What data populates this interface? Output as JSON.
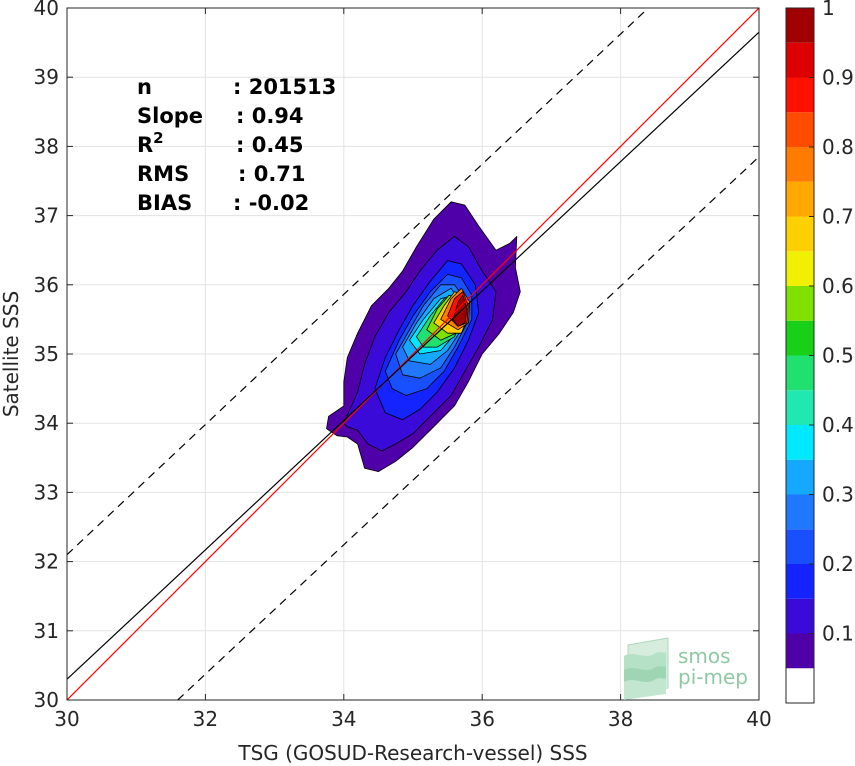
{
  "chart_data": {
    "type": "contour-density-scatter",
    "xlabel": "TSG (GOSUD-Research-vessel) SSS",
    "ylabel": "Satellite SSS",
    "xlim": [
      30,
      40
    ],
    "ylim": [
      30,
      40
    ],
    "xticks": [
      "30",
      "32",
      "34",
      "36",
      "38",
      "40"
    ],
    "yticks": [
      "30",
      "31",
      "32",
      "33",
      "34",
      "35",
      "36",
      "37",
      "38",
      "39",
      "40"
    ],
    "grid": true,
    "stats": [
      {
        "key": "n",
        "value": ": 201513"
      },
      {
        "key": "Slope",
        "value": ": 0.94"
      },
      {
        "key": "R",
        "sup": "2",
        "value": ": 0.45"
      },
      {
        "key": "RMS",
        "value": ": 0.71"
      },
      {
        "key": "BIAS",
        "value": ": -0.02"
      }
    ],
    "lines": [
      {
        "kind": "identity",
        "color": "#ff0000",
        "style": "solid",
        "x": [
          30,
          40
        ],
        "y": [
          30,
          40
        ]
      },
      {
        "kind": "regression",
        "color": "#000000",
        "style": "solid",
        "x": [
          30,
          40
        ],
        "y": [
          30.3,
          39.65
        ]
      },
      {
        "kind": "upper-bound",
        "color": "#000000",
        "style": "dashed",
        "x": [
          30,
          38.4
        ],
        "y": [
          32.1,
          40
        ]
      },
      {
        "kind": "lower-bound",
        "color": "#000000",
        "style": "dashed",
        "x": [
          31.6,
          40
        ],
        "y": [
          30,
          37.85
        ]
      }
    ],
    "colorbar": {
      "ticks": [
        "0.1",
        "0.2",
        "0.3",
        "0.4",
        "0.5",
        "0.6",
        "0.7",
        "0.8",
        "0.9",
        "1"
      ],
      "range": [
        0,
        1
      ],
      "levels": [
        0.05,
        0.1,
        0.15,
        0.2,
        0.25,
        0.3,
        0.35,
        0.4,
        0.45,
        0.5,
        0.55,
        0.6,
        0.65,
        0.7,
        0.75,
        0.8,
        0.85,
        0.9,
        0.95
      ],
      "colors": [
        "#ffffff",
        "#5000a8",
        "#3a0ad8",
        "#1424ff",
        "#1850ff",
        "#1f78ff",
        "#15a8ff",
        "#00e8ff",
        "#20e8b0",
        "#20e070",
        "#18d018",
        "#80e000",
        "#f0f000",
        "#ffd000",
        "#ffa800",
        "#ff7c00",
        "#ff4c00",
        "#ff1000",
        "#dc0000",
        "#a00000"
      ]
    },
    "contours": [
      {
        "level": 0.05,
        "points": [
          [
            33.75,
            33.92
          ],
          [
            33.78,
            34.1
          ],
          [
            34.0,
            34.25
          ],
          [
            34.0,
            34.6
          ],
          [
            34.05,
            34.95
          ],
          [
            34.2,
            35.3
          ],
          [
            34.4,
            35.7
          ],
          [
            34.65,
            35.95
          ],
          [
            34.85,
            36.2
          ],
          [
            35.05,
            36.55
          ],
          [
            35.3,
            36.95
          ],
          [
            35.55,
            37.2
          ],
          [
            35.75,
            37.15
          ],
          [
            35.95,
            36.85
          ],
          [
            36.2,
            36.5
          ],
          [
            36.4,
            36.6
          ],
          [
            36.5,
            36.7
          ],
          [
            36.48,
            36.25
          ],
          [
            36.55,
            35.9
          ],
          [
            36.45,
            35.6
          ],
          [
            36.25,
            35.3
          ],
          [
            36.0,
            35.0
          ],
          [
            35.8,
            34.6
          ],
          [
            35.6,
            34.25
          ],
          [
            35.3,
            33.95
          ],
          [
            35.0,
            33.65
          ],
          [
            34.75,
            33.45
          ],
          [
            34.5,
            33.3
          ],
          [
            34.3,
            33.35
          ],
          [
            34.2,
            33.7
          ],
          [
            34.05,
            33.8
          ],
          [
            33.9,
            33.82
          ]
        ]
      },
      {
        "level": 0.1,
        "points": [
          [
            34.0,
            34.0
          ],
          [
            34.2,
            34.45
          ],
          [
            34.3,
            34.85
          ],
          [
            34.45,
            35.25
          ],
          [
            34.65,
            35.6
          ],
          [
            34.9,
            35.9
          ],
          [
            35.1,
            36.2
          ],
          [
            35.35,
            36.5
          ],
          [
            35.6,
            36.7
          ],
          [
            35.8,
            36.55
          ],
          [
            36.0,
            36.2
          ],
          [
            36.2,
            35.9
          ],
          [
            36.15,
            35.5
          ],
          [
            35.95,
            35.1
          ],
          [
            35.75,
            34.75
          ],
          [
            35.55,
            34.4
          ],
          [
            35.25,
            34.1
          ],
          [
            35.0,
            33.85
          ],
          [
            34.75,
            33.7
          ],
          [
            34.55,
            33.6
          ],
          [
            34.35,
            33.7
          ],
          [
            34.2,
            33.9
          ],
          [
            34.05,
            33.95
          ]
        ]
      },
      {
        "level": 0.15,
        "points": [
          [
            34.45,
            34.5
          ],
          [
            34.6,
            34.95
          ],
          [
            34.8,
            35.35
          ],
          [
            35.0,
            35.7
          ],
          [
            35.25,
            36.05
          ],
          [
            35.5,
            36.35
          ],
          [
            35.7,
            36.3
          ],
          [
            35.9,
            36.0
          ],
          [
            35.95,
            35.6
          ],
          [
            35.8,
            35.2
          ],
          [
            35.6,
            34.8
          ],
          [
            35.35,
            34.45
          ],
          [
            35.1,
            34.2
          ],
          [
            34.85,
            34.05
          ],
          [
            34.6,
            34.15
          ]
        ]
      },
      {
        "level": 0.2,
        "points": [
          [
            34.6,
            34.75
          ],
          [
            34.8,
            35.2
          ],
          [
            35.0,
            35.55
          ],
          [
            35.25,
            35.9
          ],
          [
            35.5,
            36.15
          ],
          [
            35.7,
            36.1
          ],
          [
            35.85,
            35.85
          ],
          [
            35.85,
            35.5
          ],
          [
            35.65,
            35.1
          ],
          [
            35.45,
            34.75
          ],
          [
            35.2,
            34.5
          ],
          [
            34.9,
            34.4
          ],
          [
            34.7,
            34.5
          ]
        ]
      },
      {
        "level": 0.25,
        "points": [
          [
            34.75,
            35.0
          ],
          [
            34.95,
            35.35
          ],
          [
            35.15,
            35.7
          ],
          [
            35.4,
            36.0
          ],
          [
            35.6,
            36.0
          ],
          [
            35.75,
            35.8
          ],
          [
            35.78,
            35.45
          ],
          [
            35.6,
            35.1
          ],
          [
            35.4,
            34.8
          ],
          [
            35.1,
            34.65
          ],
          [
            34.85,
            34.7
          ]
        ]
      },
      {
        "level": 0.3,
        "points": [
          [
            34.85,
            35.1
          ],
          [
            35.05,
            35.45
          ],
          [
            35.3,
            35.8
          ],
          [
            35.55,
            35.95
          ],
          [
            35.72,
            35.7
          ],
          [
            35.7,
            35.35
          ],
          [
            35.5,
            35.05
          ],
          [
            35.25,
            34.85
          ],
          [
            34.95,
            34.9
          ]
        ]
      },
      {
        "level": 0.35,
        "points": [
          [
            34.95,
            35.2
          ],
          [
            35.15,
            35.5
          ],
          [
            35.4,
            35.8
          ],
          [
            35.6,
            35.85
          ],
          [
            35.7,
            35.6
          ],
          [
            35.62,
            35.3
          ],
          [
            35.4,
            35.05
          ],
          [
            35.1,
            35.0
          ]
        ]
      },
      {
        "level": 0.45,
        "points": [
          [
            35.05,
            35.25
          ],
          [
            35.25,
            35.55
          ],
          [
            35.45,
            35.8
          ],
          [
            35.62,
            35.78
          ],
          [
            35.72,
            35.55
          ],
          [
            35.6,
            35.25
          ],
          [
            35.35,
            35.1
          ],
          [
            35.15,
            35.1
          ]
        ]
      },
      {
        "level": 0.55,
        "points": [
          [
            35.2,
            35.35
          ],
          [
            35.35,
            35.65
          ],
          [
            35.52,
            35.85
          ],
          [
            35.68,
            35.8
          ],
          [
            35.75,
            35.55
          ],
          [
            35.62,
            35.3
          ],
          [
            35.4,
            35.2
          ]
        ]
      },
      {
        "level": 0.65,
        "points": [
          [
            35.3,
            35.45
          ],
          [
            35.45,
            35.7
          ],
          [
            35.6,
            35.9
          ],
          [
            35.75,
            35.85
          ],
          [
            35.8,
            35.55
          ],
          [
            35.7,
            35.3
          ],
          [
            35.5,
            35.3
          ]
        ]
      },
      {
        "level": 0.75,
        "points": [
          [
            35.4,
            35.5
          ],
          [
            35.55,
            35.8
          ],
          [
            35.7,
            35.95
          ],
          [
            35.82,
            35.75
          ],
          [
            35.8,
            35.45
          ],
          [
            35.65,
            35.35
          ]
        ]
      },
      {
        "level": 0.85,
        "points": [
          [
            35.5,
            35.55
          ],
          [
            35.6,
            35.8
          ],
          [
            35.72,
            35.9
          ],
          [
            35.8,
            35.7
          ],
          [
            35.78,
            35.45
          ],
          [
            35.65,
            35.4
          ]
        ]
      },
      {
        "level": 0.95,
        "points": [
          [
            35.58,
            35.5
          ],
          [
            35.65,
            35.75
          ],
          [
            35.72,
            35.85
          ],
          [
            35.78,
            35.65
          ],
          [
            35.75,
            35.45
          ],
          [
            35.65,
            35.4
          ]
        ]
      }
    ]
  },
  "logo": {
    "line1": "smos",
    "line2": "pi-mep"
  }
}
